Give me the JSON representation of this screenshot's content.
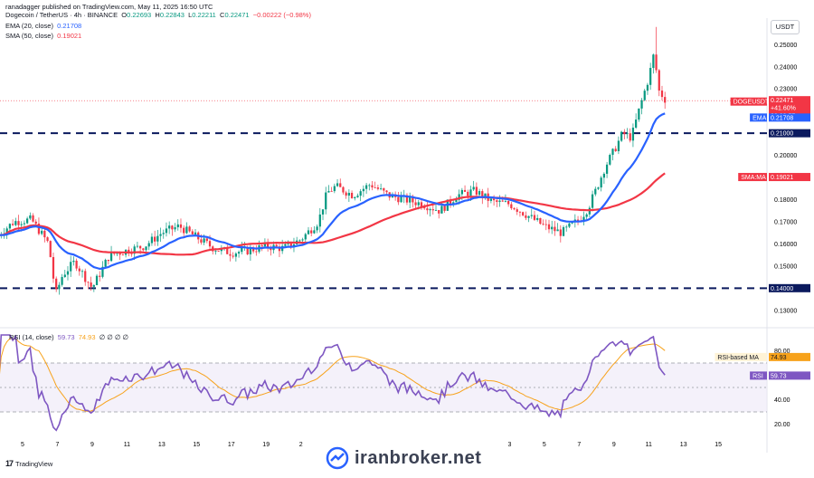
{
  "header": {
    "published": "ranadagger published on TradingView.com, May 11, 2025 16:50 UTC",
    "symbol_line": "Dogecoin / TetherUS · 4h · BINANCE",
    "o_label": "O",
    "o_value": "0.22693",
    "h_label": "H",
    "h_value": "0.22843",
    "l_label": "L",
    "l_value": "0.22211",
    "c_label": "C",
    "c_value": "0.22471",
    "change": "−0.00222 (−0.98%)",
    "ema_label": "EMA (20, close)",
    "ema_value": "0.21708",
    "sma_label": "SMA (50, close)",
    "sma_value": "0.19021",
    "rsi_label": "RSI (14, close)",
    "rsi_value": "59.73",
    "rsi_ma_value": "74.93",
    "rsi_extra": "∅ ∅ ∅ ∅"
  },
  "currency_button": "USDT",
  "footer": {
    "brand": "TradingView",
    "watermark": "iranbroker.net"
  },
  "colors": {
    "up": "#089981",
    "down": "#f23645",
    "ema": "#2962ff",
    "sma": "#f23645",
    "rsi": "#7e57c2",
    "rsi_ma": "#f7a21b",
    "level_line": "#0b1a5e"
  },
  "chart_data": [
    {
      "type": "candlestick",
      "title": "Dogecoin / TetherUS · 4h · BINANCE",
      "y_axis": {
        "ticks": [
          "0.25000",
          "0.24000",
          "0.23000",
          "0.22000",
          "0.21000",
          "0.20000",
          "0.19000",
          "0.18000",
          "0.17000",
          "0.16000",
          "0.15000",
          "0.14000",
          "0.13000"
        ],
        "ylim": [
          0.125,
          0.262
        ],
        "scale": "linear"
      },
      "x_axis": {
        "tick_labels": [
          "5",
          "7",
          "9",
          "11",
          "13",
          "15",
          "17",
          "19",
          "2",
          "3",
          "5",
          "7",
          "9",
          "11",
          "13",
          "15"
        ],
        "tick_days": [
          5,
          7,
          9,
          11,
          13,
          15,
          17,
          19,
          21,
          33,
          35,
          37,
          39,
          41,
          43,
          45
        ],
        "range_days": [
          3.7,
          47.8
        ]
      },
      "day_offset_note": "",
      "candles_anchor": {
        "days": [
          3.6,
          4.5,
          5.5,
          6.5,
          6.9,
          7.3,
          8.0,
          9.0,
          10.0,
          11.0,
          12.0,
          13.0,
          14.0,
          15.0,
          16.0,
          17.0,
          18.0,
          19.0,
          20.0,
          21.0,
          22.0,
          22.5,
          23.0,
          24.0,
          25.0,
          26.0,
          27.0,
          28.0,
          29.0,
          30.0,
          31.0,
          32.0,
          33.0,
          34.0,
          35.0,
          36.0,
          37.0,
          37.5,
          38.0,
          38.5,
          39.0,
          39.5,
          40.0,
          40.5,
          41.0,
          41.3,
          41.6,
          42.0
        ],
        "close": [
          0.164,
          0.17,
          0.171,
          0.16,
          0.137,
          0.146,
          0.152,
          0.14,
          0.155,
          0.157,
          0.159,
          0.165,
          0.168,
          0.163,
          0.158,
          0.156,
          0.157,
          0.159,
          0.158,
          0.162,
          0.17,
          0.183,
          0.186,
          0.182,
          0.187,
          0.182,
          0.18,
          0.178,
          0.175,
          0.182,
          0.184,
          0.179,
          0.178,
          0.173,
          0.168,
          0.165,
          0.171,
          0.176,
          0.185,
          0.195,
          0.202,
          0.21,
          0.208,
          0.222,
          0.235,
          0.246,
          0.229,
          0.2247
        ]
      },
      "levels": [
        {
          "price": 0.21,
          "label": "0.21000"
        },
        {
          "price": 0.14,
          "label": "0.14000"
        }
      ],
      "series": [
        {
          "name": "EMA",
          "value_label": "0.21708"
        },
        {
          "name": "SMA:MA",
          "value_label": "0.19021"
        }
      ],
      "last_price": {
        "symbol": "DOGEUSDT",
        "value": "0.22471",
        "change": "+41.60%",
        "countdown": "03:09:57"
      }
    },
    {
      "type": "line",
      "title": "RSI (14, close)",
      "y_axis": {
        "ticks": [
          "80.00",
          "60.00",
          "40.00",
          "20.00"
        ],
        "ylim": [
          10,
          93
        ]
      },
      "bands": {
        "upper": 70,
        "mid": 50,
        "lower": 30
      },
      "series": [
        {
          "name": "RSI",
          "value_label": "59.73"
        },
        {
          "name": "RSI-based MA",
          "value_label": "74.93"
        }
      ]
    }
  ]
}
